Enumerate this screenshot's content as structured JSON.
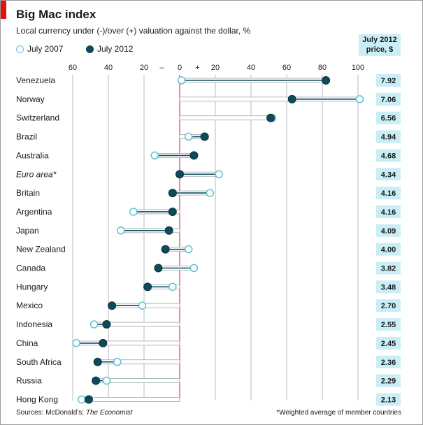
{
  "chart_data": {
    "type": "dumbbell",
    "title": "Big Mac index",
    "subtitle": "Local currency under (-)/over (+) valuation against the dollar, %",
    "legend": [
      {
        "name": "July 2007",
        "color": "#5bc3d6",
        "style": "hollow-circle"
      },
      {
        "name": "July 2012",
        "color": "#0d4a5a",
        "style": "filled-circle"
      }
    ],
    "price_header": "July 2012\nprice, $",
    "x_ticks": [
      {
        "value": -60,
        "label": "60"
      },
      {
        "value": -40,
        "label": "40"
      },
      {
        "value": -20,
        "label": "20"
      },
      {
        "value": -10,
        "label": "–"
      },
      {
        "value": 0,
        "label": "0"
      },
      {
        "value": 10,
        "label": "+"
      },
      {
        "value": 20,
        "label": "20"
      },
      {
        "value": 40,
        "label": "40"
      },
      {
        "value": 60,
        "label": "60"
      },
      {
        "value": 80,
        "label": "80"
      },
      {
        "value": 100,
        "label": "100"
      }
    ],
    "xlim": [
      -60,
      100
    ],
    "grid": true,
    "countries": [
      {
        "name": "Venezuela",
        "v2007": 1,
        "v2012": 82,
        "price": "7.92",
        "italic": false
      },
      {
        "name": "Norway",
        "v2007": 101,
        "v2012": 63,
        "price": "7.06",
        "italic": false
      },
      {
        "name": "Switzerland",
        "v2007": 52,
        "v2012": 51,
        "price": "6.56",
        "italic": false
      },
      {
        "name": "Brazil",
        "v2007": 5,
        "v2012": 14,
        "price": "4.94",
        "italic": false
      },
      {
        "name": "Australia",
        "v2007": -14,
        "v2012": 8,
        "price": "4.68",
        "italic": false
      },
      {
        "name": "Euro area*",
        "v2007": 22,
        "v2012": 0,
        "price": "4.34",
        "italic": true
      },
      {
        "name": "Britain",
        "v2007": 17,
        "v2012": -4,
        "price": "4.16",
        "italic": false
      },
      {
        "name": "Argentina",
        "v2007": -26,
        "v2012": -4,
        "price": "4.16",
        "italic": false
      },
      {
        "name": "Japan",
        "v2007": -33,
        "v2012": -6,
        "price": "4.09",
        "italic": false
      },
      {
        "name": "New Zealand",
        "v2007": 5,
        "v2012": -8,
        "price": "4.00",
        "italic": false
      },
      {
        "name": "Canada",
        "v2007": 8,
        "v2012": -12,
        "price": "3.82",
        "italic": false
      },
      {
        "name": "Hungary",
        "v2007": -4,
        "v2012": -18,
        "price": "3.48",
        "italic": false
      },
      {
        "name": "Mexico",
        "v2007": -21,
        "v2012": -38,
        "price": "2.70",
        "italic": false
      },
      {
        "name": "Indonesia",
        "v2007": -48,
        "v2012": -41,
        "price": "2.55",
        "italic": false
      },
      {
        "name": "China",
        "v2007": -58,
        "v2012": -43,
        "price": "2.45",
        "italic": false
      },
      {
        "name": "South Africa",
        "v2007": -35,
        "v2012": -46,
        "price": "2.36",
        "italic": false
      },
      {
        "name": "Russia",
        "v2007": -41,
        "v2012": -47,
        "price": "2.29",
        "italic": false
      },
      {
        "name": "Hong Kong",
        "v2007": -55,
        "v2012": -51,
        "price": "2.13",
        "italic": false
      }
    ]
  },
  "footer": {
    "source_prefix": "Sources: McDonald’s;",
    "source_italic": "The Economist",
    "footnote": "*Weighted average of member countries"
  }
}
